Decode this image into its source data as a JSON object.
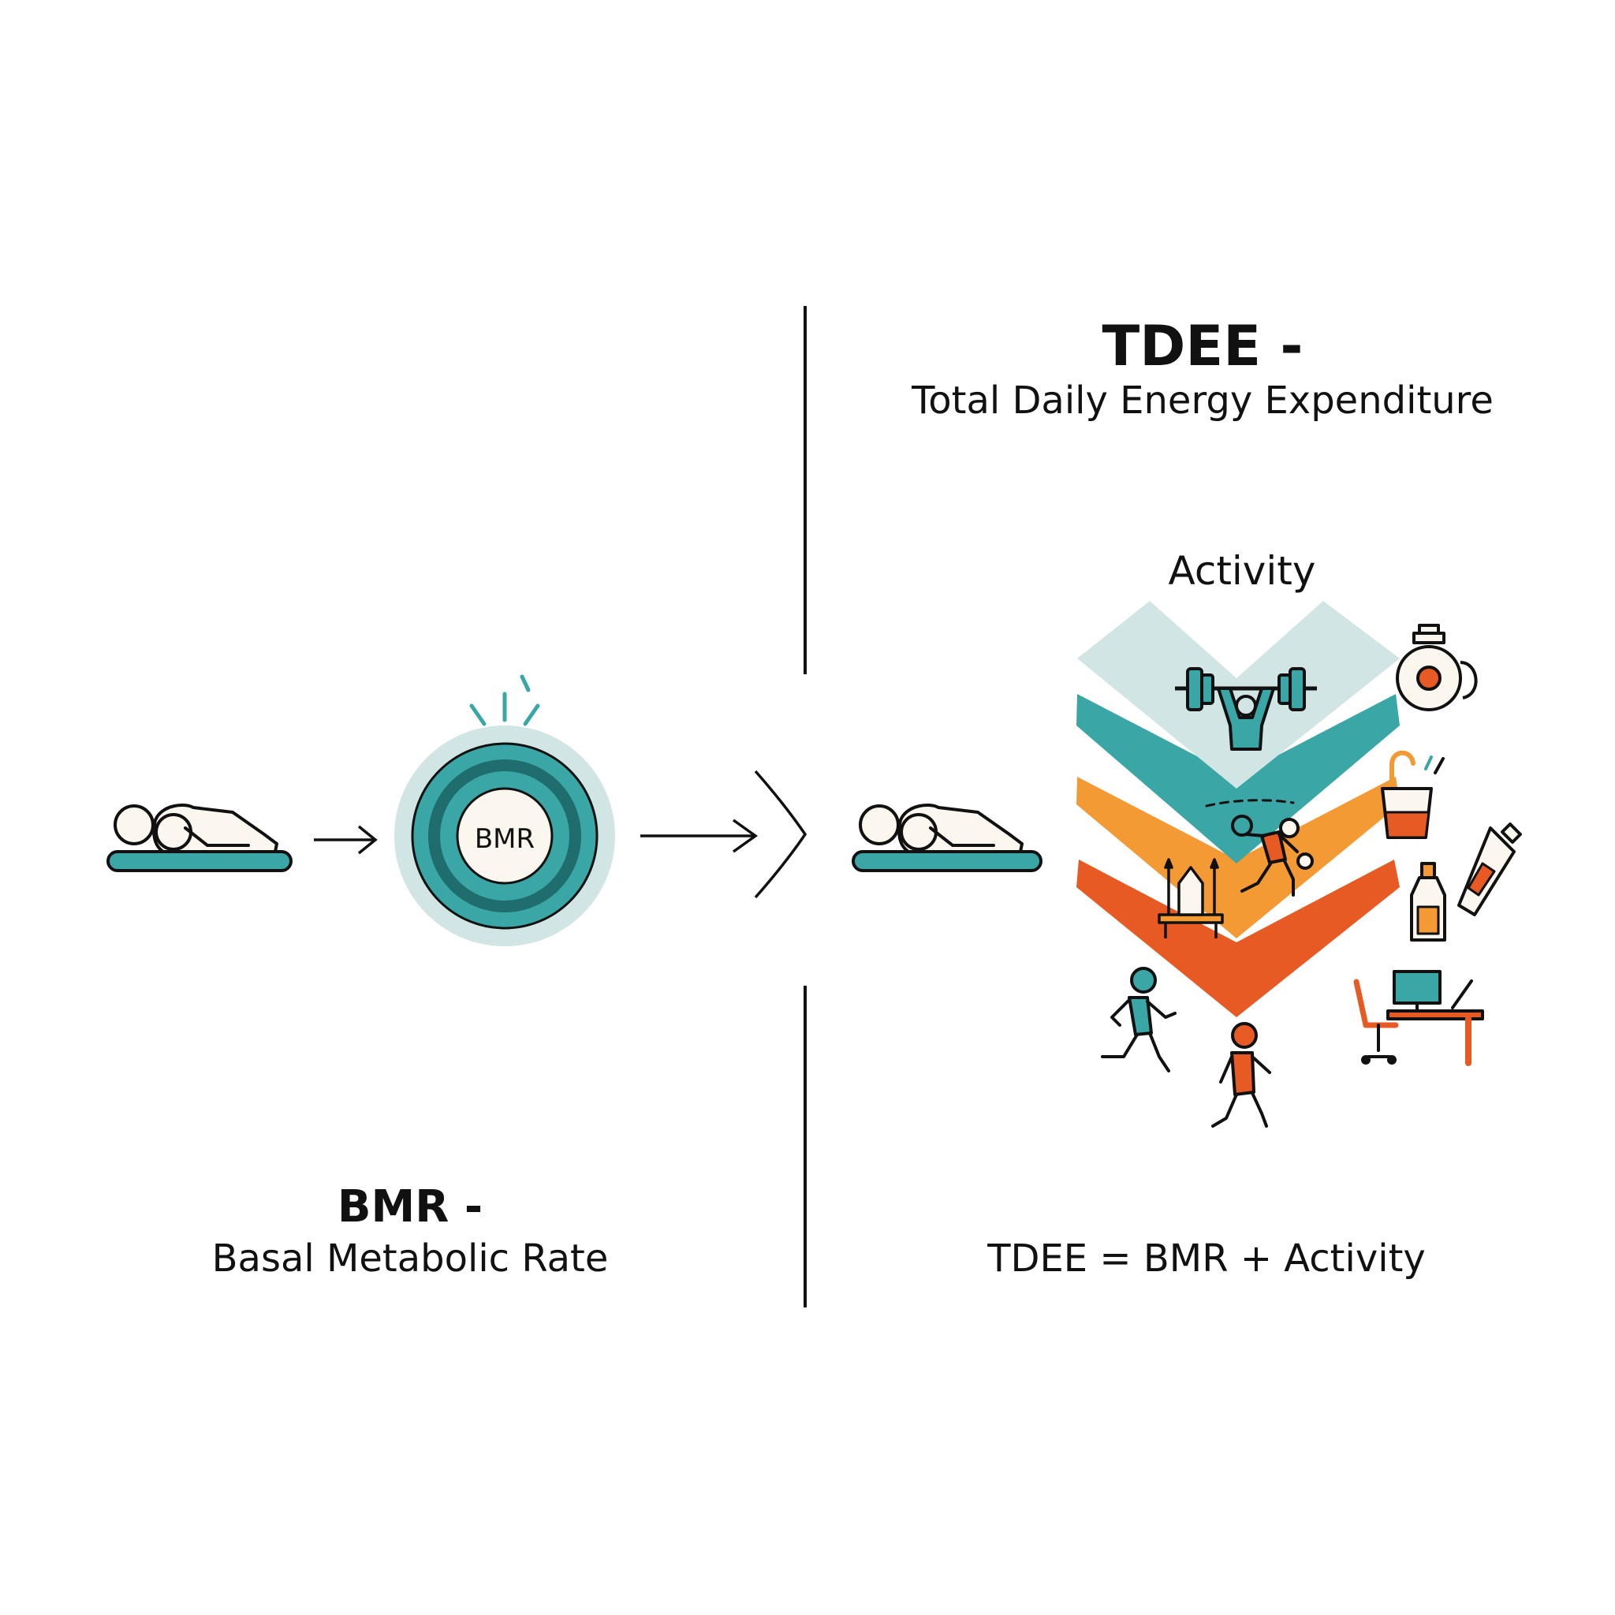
{
  "bmr": {
    "title": "BMR -",
    "subtitle": "Basal Metabolic Rate",
    "circle_label": "BMR"
  },
  "tdee": {
    "title": "TDEE -",
    "subtitle": "Total Daily Energy Expenditure",
    "activity_label": "Activity",
    "formula": "TDEE = BMR + Activity"
  },
  "colors": {
    "teal": "#3aa6a6",
    "dark_teal": "#1f6d6d",
    "light_teal": "#d1e6e4",
    "orange": "#f39a35",
    "red_orange": "#e85a24",
    "cream": "#fbf7ee",
    "line": "#111111"
  },
  "icons": [
    "resting-person-icon",
    "arrow-right-icon",
    "metabolism-circle-icon",
    "weightlifter-icon",
    "sprinter-icon",
    "kettlebell-icon",
    "cup-icon",
    "bottle-icon",
    "desk-computer-icon",
    "runner-icon",
    "walker-icon"
  ]
}
